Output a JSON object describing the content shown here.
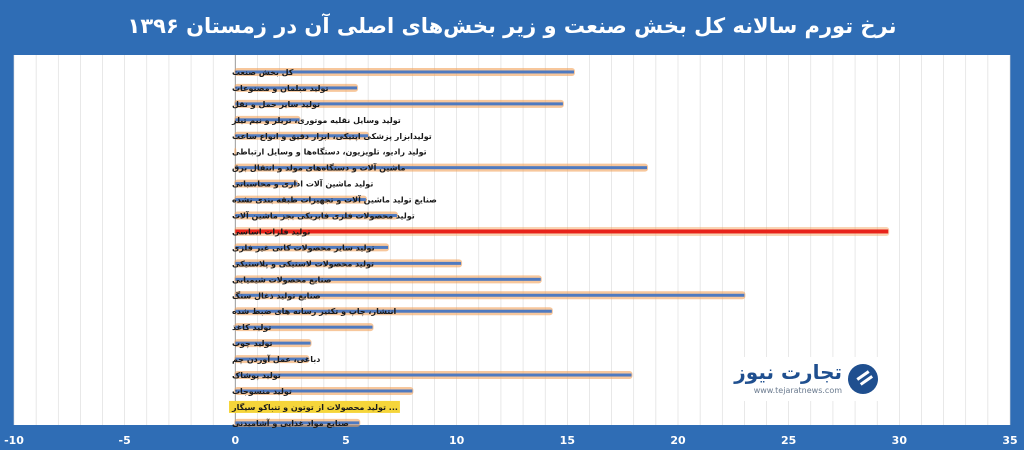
{
  "title": "نرخ تورم سالانه کل بخش صنعت و زیر بخش‌های اصلی آن در زمستان ۱۳۹۶",
  "logo": {
    "name": "تجارت نیوز",
    "url": "www.tejaratnews.com"
  },
  "colors": {
    "background": "#2f6db5",
    "plot_background": "#ffffff",
    "bar": "#4f7ac0",
    "bar_glow": "#f2a25a",
    "highlight_bar": "#e8231a",
    "highlight_label": "#f5d53a"
  },
  "chart_data": {
    "type": "bar",
    "orientation": "horizontal",
    "title": "نرخ تورم سالانه کل بخش صنعت و زیر بخش‌های اصلی آن در زمستان ۱۳۹۶",
    "categories": [
      "کل بخش صنعت",
      "تولید مبلمان و مصنوعات",
      "تولید سایر حمل و نقل",
      "تولید وسایل نقلیه موتوری، تریلر و نیم تیلر",
      "تولیدابزار پزشکی اپتیکی، ابزار دقیق و انواع ساعت",
      "تولید رادیو، تلویزیون، دستگاه‌ها و وسایل ارتباطی",
      "ماشین آلات و دستگاه‌های مولد و انتقال برق",
      "تولید ماشین آلات اداری و محاسباتی",
      "صنایع تولید ماشین آلات و تجهیزات طبقه بندی نشده",
      "تولید محصولات فلزی فابریکی بجز ماشین آلات",
      "تولید فلزات اساسی",
      "تولید سایر محصولات کانی غیر فلزی",
      "تولید محصولات لاستیکی و پلاستیکی",
      "صنایع محصولات شیمیایی",
      "صنایع تولید ذغال سنگ",
      "انتشار، چاپ و تکثیر رسانه های ضبط شده",
      "تولید کاغذ",
      "تولید چوب",
      "دباغی، عمل آوردن چم",
      "تولید پوشاک",
      "تولید منسوجات",
      "... تولید محصولات از توتون و تنباکو سیگار",
      "صنایع مواد غذایی و آشامیدنی"
    ],
    "values": [
      15.3,
      5.5,
      14.8,
      2.9,
      6.0,
      0.0,
      18.6,
      2.8,
      5.9,
      7.3,
      29.5,
      6.9,
      10.2,
      13.8,
      23.0,
      14.3,
      6.2,
      3.4,
      3.3,
      17.9,
      8.0,
      0.0,
      5.6
    ],
    "highlight_index": 10,
    "label_highlight_index": 21,
    "xlim": [
      -10,
      35
    ],
    "xticks": [
      "-10",
      "-5",
      "0",
      "5",
      "10",
      "15",
      "20",
      "25",
      "30",
      "35"
    ],
    "xtick_values": [
      -10,
      -5,
      0,
      5,
      10,
      15,
      20,
      25,
      30,
      35
    ],
    "grid": "vertical"
  }
}
